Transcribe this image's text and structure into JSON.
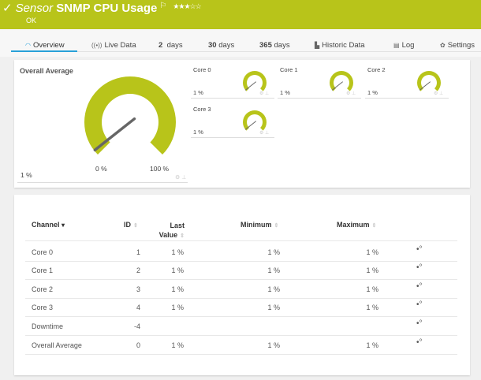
{
  "header": {
    "check_icon": "checkmark-icon",
    "type": "Sensor",
    "name": "SNMP CPU Usage",
    "flag_icon": "flag-icon",
    "stars": "★★★☆☆",
    "priority": 3,
    "status": "OK",
    "color": "#b8c41a"
  },
  "tabs": [
    {
      "icon": "gauge-icon",
      "glyph": "◠",
      "label": "Overview",
      "active": true
    },
    {
      "icon": "live-data-icon",
      "glyph": "((•))",
      "label": "Live Data"
    },
    {
      "num": "2",
      "label": "days"
    },
    {
      "num": "30",
      "label": "days"
    },
    {
      "num": "365",
      "label": "days"
    },
    {
      "icon": "chart-icon",
      "glyph": "▙",
      "label": "Historic Data"
    },
    {
      "icon": "log-icon",
      "glyph": "▤",
      "label": "Log"
    },
    {
      "icon": "gear-icon",
      "glyph": "✿",
      "label": "Settings"
    }
  ],
  "overview": {
    "main_gauge": {
      "title": "Overall Average",
      "value": "1 %",
      "value_pct": 1,
      "min_label": "0 %",
      "max_label": "100 %"
    },
    "gauges": [
      {
        "title": "Core 0",
        "value": "1 %",
        "value_pct": 1
      },
      {
        "title": "Core 1",
        "value": "1 %",
        "value_pct": 1
      },
      {
        "title": "Core 2",
        "value": "1 %",
        "value_pct": 1
      },
      {
        "title": "Core 3",
        "value": "1 %",
        "value_pct": 1
      }
    ]
  },
  "table": {
    "headers": {
      "channel": "Channel",
      "channel_sort": "▾",
      "id": "ID",
      "last": "Last",
      "last2": "Value",
      "minimum": "Minimum",
      "maximum": "Maximum",
      "sort": "⇕"
    },
    "rows": [
      {
        "channel": "Core 0",
        "id": "1",
        "last": "1 %",
        "min": "1 %",
        "max": "1 %"
      },
      {
        "channel": "Core 1",
        "id": "2",
        "last": "1 %",
        "min": "1 %",
        "max": "1 %"
      },
      {
        "channel": "Core 2",
        "id": "3",
        "last": "1 %",
        "min": "1 %",
        "max": "1 %"
      },
      {
        "channel": "Core 3",
        "id": "4",
        "last": "1 %",
        "min": "1 %",
        "max": "1 %"
      },
      {
        "channel": "Downtime",
        "id": "-4",
        "last": "",
        "min": "",
        "max": ""
      },
      {
        "channel": "Overall Average",
        "id": "0",
        "last": "1 %",
        "min": "1 %",
        "max": "1 %"
      }
    ]
  }
}
